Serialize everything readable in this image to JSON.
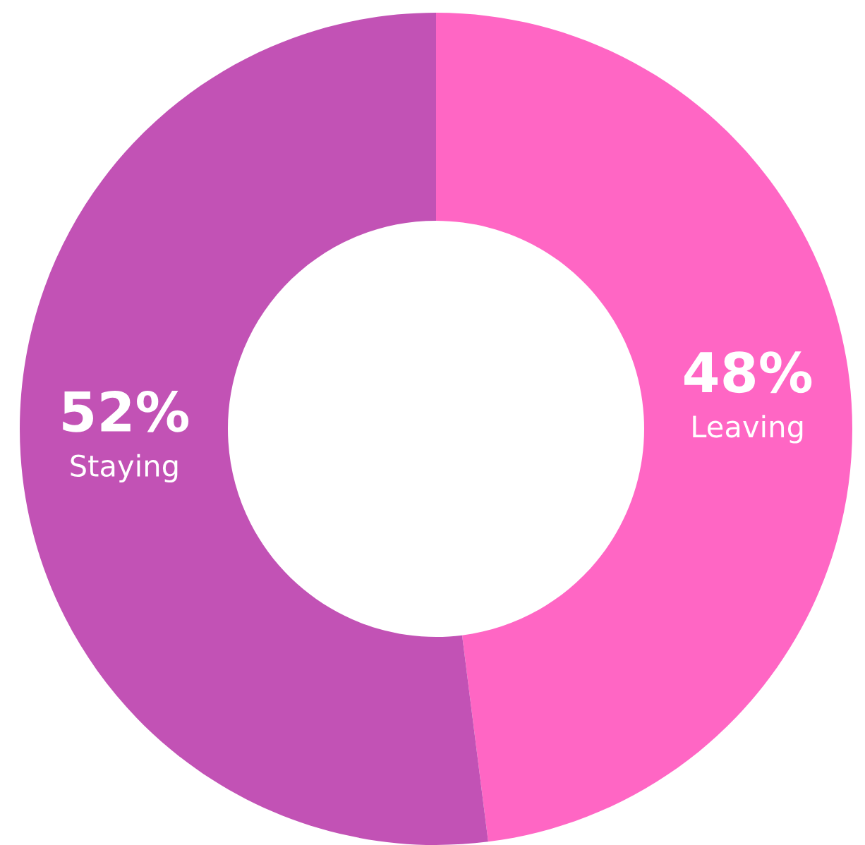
{
  "chart_data": {
    "type": "donut",
    "categories": [
      "Leaving",
      "Staying"
    ],
    "values": [
      48,
      52
    ],
    "value_labels": [
      "48%",
      "52%"
    ],
    "colors": [
      "#ff66c4",
      "#c252b5"
    ]
  }
}
